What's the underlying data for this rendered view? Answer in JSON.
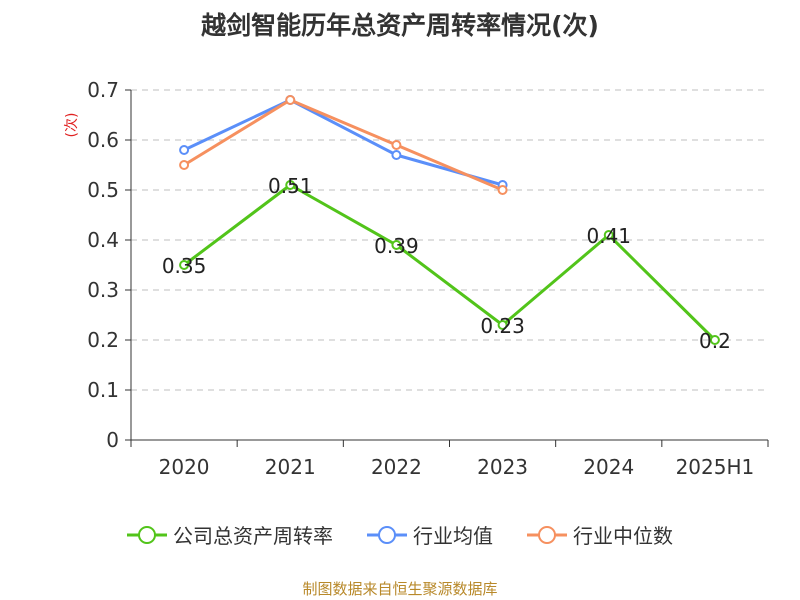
{
  "chart_data": {
    "type": "line",
    "title": "越剑智能历年总资产周转率情况(次)",
    "ylabel": "(次)",
    "xlabel": "",
    "categories": [
      "2020",
      "2021",
      "2022",
      "2023",
      "2024",
      "2025H1"
    ],
    "ylim": [
      0,
      0.7
    ],
    "yticks": [
      "0",
      "0.1",
      "0.2",
      "0.3",
      "0.4",
      "0.5",
      "0.6",
      "0.7"
    ],
    "grid": true,
    "legend_position": "bottom",
    "series": [
      {
        "name": "公司总资产周转率",
        "color": "#52c41a",
        "values": [
          0.35,
          0.51,
          0.39,
          0.23,
          0.41,
          0.2
        ],
        "labels": [
          "0.35",
          "0.51",
          "0.39",
          "0.23",
          "0.41",
          "0.2"
        ]
      },
      {
        "name": "行业均值",
        "color": "#5b8ff9",
        "values": [
          0.58,
          0.68,
          0.57,
          0.51,
          null,
          null
        ]
      },
      {
        "name": "行业中位数",
        "color": "#f6905f",
        "values": [
          0.55,
          0.68,
          0.59,
          0.5,
          null,
          null
        ]
      }
    ]
  },
  "source": "制图数据来自恒生聚源数据库"
}
